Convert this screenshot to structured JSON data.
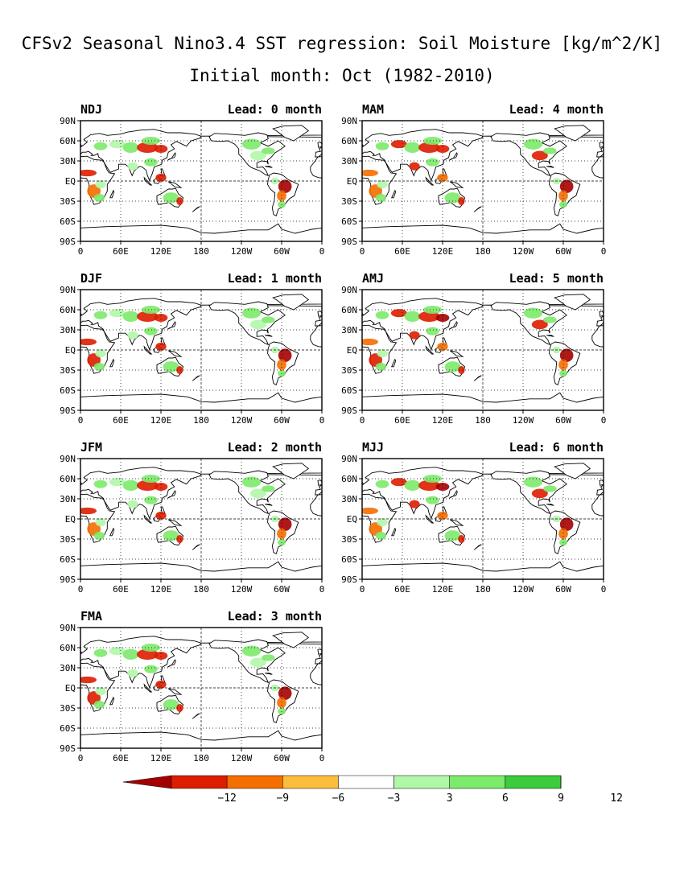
{
  "title": "CFSv2 Seasonal Nino3.4 SST regression: Soil Moisture [kg/m^2/K]",
  "subtitle": "Initial month: Oct (1982-2010)",
  "chart_data": {
    "type": "heatmap",
    "units": "kg/m^2/K",
    "panels": [
      {
        "season": "NDJ",
        "lead": "Lead: 0 month"
      },
      {
        "season": "DJF",
        "lead": "Lead: 1 month"
      },
      {
        "season": "JFM",
        "lead": "Lead: 2 month"
      },
      {
        "season": "FMA",
        "lead": "Lead: 3 month"
      },
      {
        "season": "MAM",
        "lead": "Lead: 4 month"
      },
      {
        "season": "AMJ",
        "lead": "Lead: 5 month"
      },
      {
        "season": "MJJ",
        "lead": "Lead: 6 month"
      }
    ],
    "x_ticks": [
      "0",
      "60E",
      "120E",
      "180",
      "120W",
      "60W",
      "0"
    ],
    "y_ticks": [
      "90N",
      "60N",
      "30N",
      "EQ",
      "30S",
      "60S",
      "90S"
    ],
    "grid": "dashed at 180 and EQ, dotted elsewhere",
    "colorbar": {
      "ticks": [
        "-12",
        "-9",
        "-6",
        "-3",
        "3",
        "6",
        "9",
        "12"
      ],
      "colors": [
        "#a50000",
        "#dd1d00",
        "#f46e00",
        "#fcbc3c",
        "#ffffff",
        "#b0f7a7",
        "#7cea6a",
        "#3bcb3b",
        "#1ea61e"
      ]
    }
  }
}
